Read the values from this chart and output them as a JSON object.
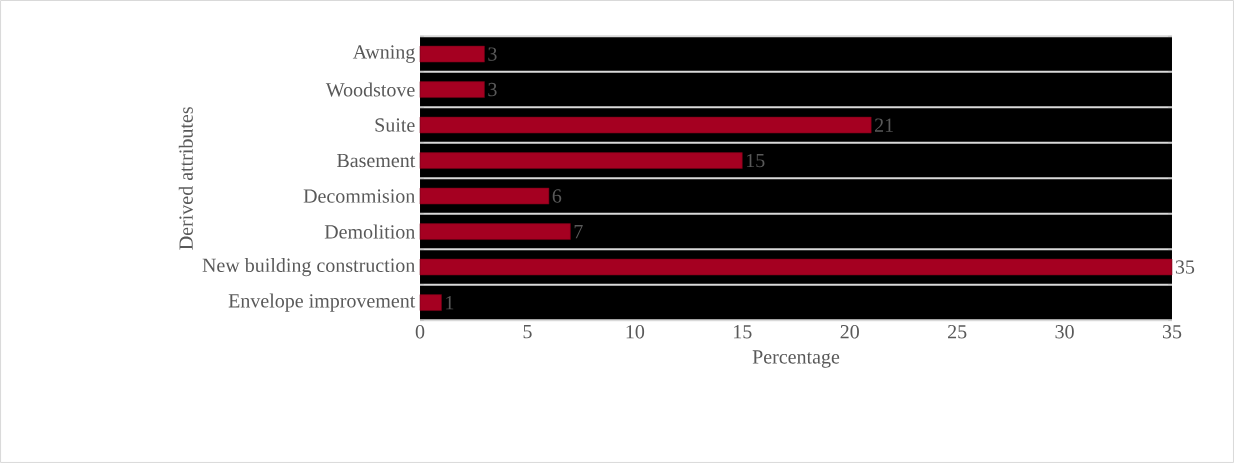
{
  "chart_data": {
    "type": "bar",
    "orientation": "horizontal",
    "xlabel": "Percentage",
    "ylabel": "Derived attributes",
    "categories": [
      "Awning",
      "Woodstove",
      "Suite",
      "Basement",
      "Decommision",
      "Demolition",
      "New building construction",
      "Envelope improvement"
    ],
    "values": [
      3,
      3,
      21,
      15,
      6,
      7,
      35,
      1
    ],
    "color": "#a50021",
    "data_labels": true,
    "xlim": [
      0,
      35
    ],
    "xticks": [
      0,
      5,
      10,
      15,
      20,
      25,
      30,
      35
    ],
    "grid": "y"
  }
}
